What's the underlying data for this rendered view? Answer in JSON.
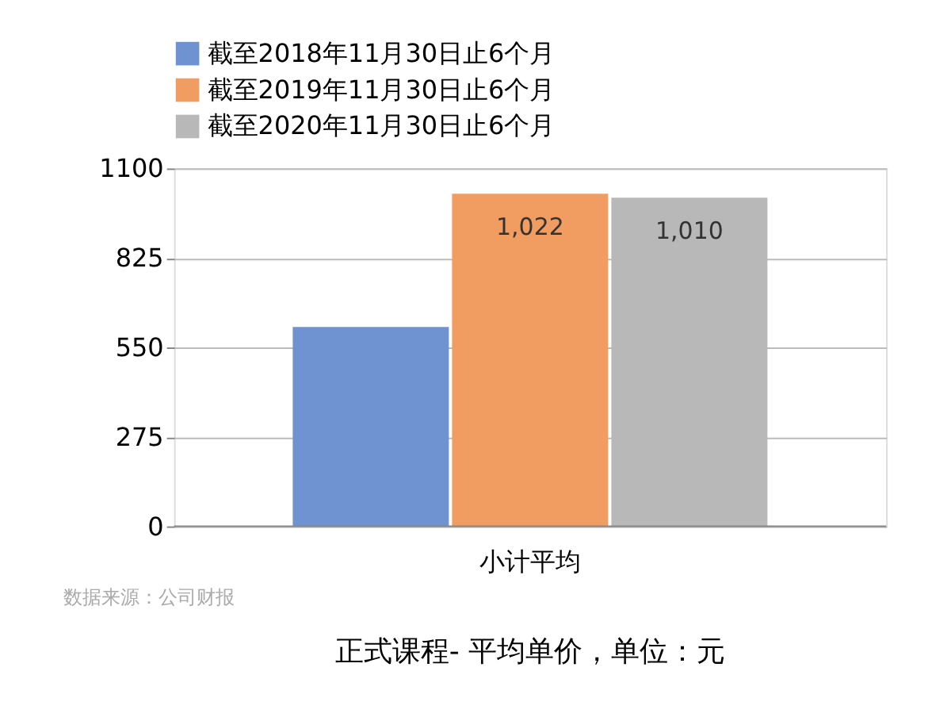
{
  "chart_data": {
    "type": "bar",
    "title": "正式课程- 平均单价，单位：元",
    "categories": [
      "小计平均"
    ],
    "series": [
      {
        "name": "截至2018年11月30日止6个月",
        "color": "#6f92d0",
        "values": [
          613
        ],
        "value_labels": [
          null
        ]
      },
      {
        "name": "截至2019年11月30日止6个月",
        "color": "#f19c61",
        "values": [
          1022
        ],
        "value_labels": [
          "1,022"
        ]
      },
      {
        "name": "截至2020年11月30日止6个月",
        "color": "#b8b8b8",
        "values": [
          1010
        ],
        "value_labels": [
          "1,010"
        ]
      }
    ],
    "ylim": [
      0,
      1100
    ],
    "yticks": [
      0,
      275,
      550,
      825,
      1100
    ],
    "grid": "y",
    "legend": "top",
    "annotations": [
      "数据来源：公司财报"
    ]
  }
}
